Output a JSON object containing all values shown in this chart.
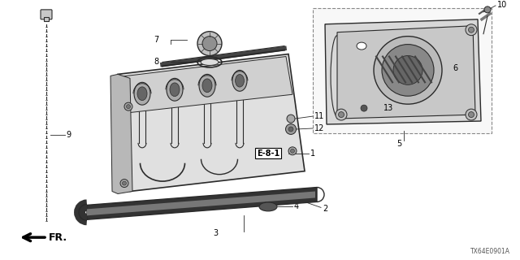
{
  "bg_color": "#ffffff",
  "line_color": "#2a2a2a",
  "diagram_code": "TX64E0901A",
  "gray_fill": "#c8c8c8",
  "dark_fill": "#555555",
  "mid_fill": "#888888"
}
